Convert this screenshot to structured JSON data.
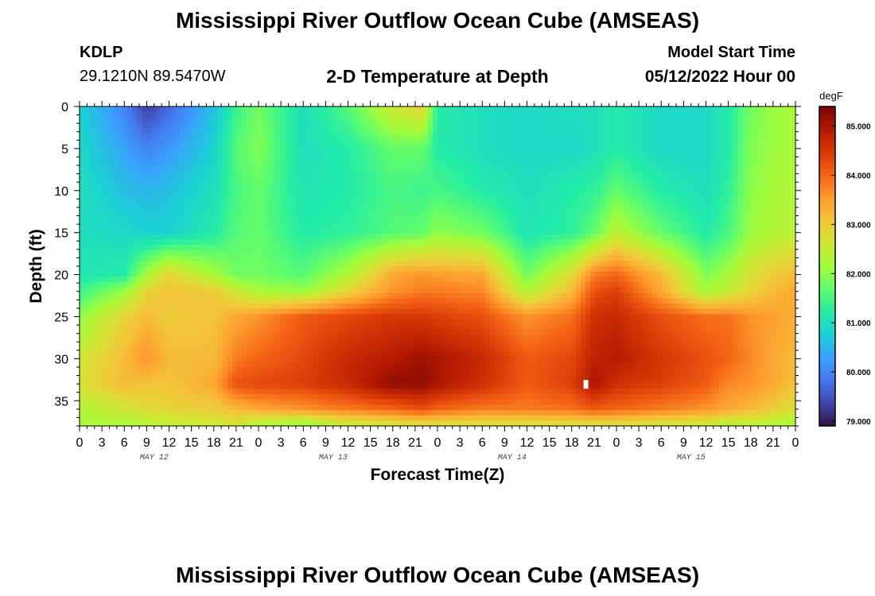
{
  "header": {
    "title": "Mississippi River Outflow Ocean Cube (AMSEAS)",
    "station_id": "KDLP",
    "coords": "29.1210N  89.5470W",
    "subtitle": "2-D Temperature at Depth",
    "start_label": "Model Start Time",
    "start_value": "05/12/2022 Hour 00"
  },
  "footer": {
    "title": "Mississippi River Outflow Ocean Cube (AMSEAS)"
  },
  "chart_data": {
    "type": "heatmap",
    "title": "2-D Temperature at Depth",
    "xlabel": "Forecast Time(Z)",
    "ylabel": "Depth (ft)",
    "x_tick_labels": [
      "0",
      "3",
      "6",
      "9",
      "12",
      "15",
      "18",
      "21",
      "0",
      "3",
      "6",
      "9",
      "12",
      "15",
      "18",
      "21",
      "0",
      "3",
      "6",
      "9",
      "12",
      "15",
      "18",
      "21",
      "0",
      "3",
      "6",
      "9",
      "12",
      "15",
      "18",
      "21",
      "0"
    ],
    "date_labels": [
      "MAY 12",
      "MAY 13",
      "MAY 14",
      "MAY 15"
    ],
    "xlim_hours": [
      0,
      96
    ],
    "y_ticks": [
      0,
      5,
      10,
      15,
      20,
      25,
      30,
      35
    ],
    "ylim": [
      0,
      38
    ],
    "colorbar": {
      "unit": "degF",
      "ticks": [
        "85.000",
        "84.000",
        "83.000",
        "82.000",
        "81.000",
        "80.000",
        "79.000"
      ],
      "range": [
        78.9,
        85.4
      ]
    },
    "colormap": [
      "#30123b",
      "#4145ab",
      "#4675ed",
      "#39a2fc",
      "#1bcfd4",
      "#24eca6",
      "#61fc6c",
      "#a4fc3b",
      "#d1e834",
      "#f3c63a",
      "#fe9b2d",
      "#f36315",
      "#d93806",
      "#b11901",
      "#7a0403"
    ],
    "depth_levels_ft": [
      0,
      5,
      10,
      15,
      20,
      22,
      25,
      30,
      33,
      36,
      38
    ],
    "time_hours": [
      0,
      6,
      9,
      12,
      18,
      21,
      24,
      30,
      36,
      42,
      46,
      48,
      54,
      60,
      66,
      69,
      72,
      78,
      84,
      87,
      90,
      93,
      96
    ],
    "temperature_degF": [
      [
        80.8,
        80.0,
        79.3,
        79.7,
        80.6,
        81.4,
        81.8,
        81.0,
        81.6,
        82.6,
        82.9,
        81.2,
        81.0,
        80.9,
        81.0,
        81.0,
        81.2,
        80.9,
        80.9,
        81.2,
        81.8,
        82.1,
        82.2
      ],
      [
        80.9,
        80.3,
        80.0,
        80.2,
        80.8,
        81.6,
        81.9,
        81.0,
        81.2,
        81.7,
        81.7,
        81.2,
        81.0,
        80.9,
        80.9,
        81.0,
        81.2,
        80.9,
        80.9,
        81.2,
        81.9,
        82.1,
        82.2
      ],
      [
        81.0,
        80.6,
        80.5,
        80.6,
        81.0,
        81.5,
        81.7,
        81.1,
        81.2,
        81.5,
        81.4,
        81.5,
        81.2,
        81.0,
        81.2,
        81.3,
        81.7,
        81.2,
        81.0,
        81.3,
        82.0,
        82.2,
        82.3
      ],
      [
        81.0,
        80.9,
        80.8,
        80.8,
        81.2,
        81.6,
        81.7,
        81.2,
        81.3,
        81.6,
        81.7,
        82.0,
        81.8,
        81.1,
        81.3,
        81.7,
        82.4,
        81.7,
        81.2,
        81.5,
        82.1,
        82.3,
        82.4
      ],
      [
        81.1,
        81.2,
        82.2,
        82.9,
        82.2,
        81.8,
        81.8,
        81.6,
        82.3,
        83.4,
        83.6,
        83.5,
        83.4,
        81.8,
        82.8,
        83.8,
        84.0,
        83.2,
        81.9,
        82.2,
        82.7,
        83.0,
        83.2
      ],
      [
        81.4,
        82.1,
        82.9,
        83.1,
        83.0,
        82.6,
        82.2,
        82.1,
        82.9,
        83.6,
        83.8,
        83.8,
        83.7,
        82.3,
        83.2,
        84.2,
        84.4,
        83.4,
        82.2,
        82.5,
        82.9,
        83.2,
        83.4
      ],
      [
        82.0,
        82.9,
        83.2,
        83.0,
        83.1,
        83.4,
        83.6,
        84.1,
        84.3,
        84.5,
        84.5,
        84.4,
        84.2,
        83.6,
        83.9,
        84.6,
        84.7,
        84.2,
        83.9,
        83.9,
        83.6,
        83.5,
        83.3
      ],
      [
        82.6,
        83.2,
        83.6,
        83.2,
        83.2,
        83.8,
        84.0,
        84.3,
        84.7,
        84.9,
        85.1,
        85.0,
        84.7,
        84.1,
        84.3,
        84.8,
        84.9,
        84.5,
        84.2,
        84.0,
        83.7,
        83.4,
        83.2
      ],
      [
        82.7,
        83.2,
        83.1,
        83.1,
        83.4,
        84.2,
        84.3,
        84.4,
        84.7,
        85.2,
        85.2,
        85.0,
        84.6,
        84.1,
        84.4,
        85.0,
        84.6,
        84.4,
        84.1,
        83.7,
        83.6,
        83.4,
        83.1
      ],
      [
        82.3,
        82.6,
        82.8,
        82.9,
        83.0,
        83.2,
        83.4,
        83.6,
        83.8,
        84.0,
        84.2,
        84.0,
        83.8,
        83.8,
        83.9,
        84.1,
        84.0,
        83.8,
        83.6,
        83.4,
        83.2,
        83.0,
        82.7
      ],
      [
        82.2,
        82.2,
        82.3,
        82.4,
        82.5,
        82.6,
        82.2,
        81.9,
        82.4,
        82.5,
        82.6,
        82.6,
        82.6,
        82.6,
        82.6,
        82.6,
        82.6,
        82.5,
        82.4,
        82.3,
        82.3,
        82.2,
        82.2
      ]
    ],
    "grid": false,
    "legend": "colorbar-right"
  }
}
